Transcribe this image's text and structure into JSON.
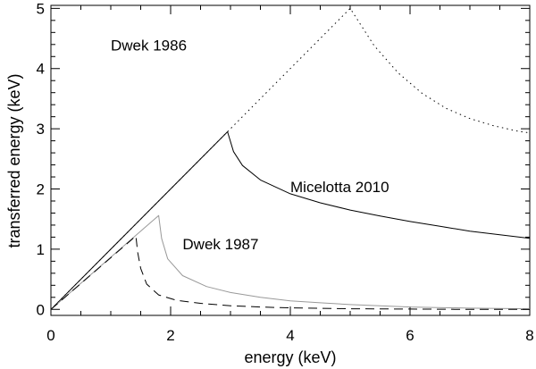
{
  "chart_data": {
    "type": "line",
    "title": "",
    "xlabel": "energy (keV)",
    "ylabel": "transferred energy (keV)",
    "xlim": [
      0,
      8
    ],
    "ylim": [
      -0.1,
      5.05
    ],
    "xticks": [
      0,
      2,
      4,
      6,
      8
    ],
    "xtick_labels": [
      "0",
      "2",
      "4",
      "6",
      "8"
    ],
    "yticks": [
      0,
      1,
      2,
      3,
      4,
      5
    ],
    "ytick_labels": [
      "0",
      "1",
      "2",
      "3",
      "4",
      "5"
    ],
    "grid": false,
    "legend": "none",
    "annotations": [
      {
        "text": "Dwek 1986",
        "x": 1.0,
        "y": 4.3
      },
      {
        "text": "Micelotta 2010",
        "x": 4.0,
        "y": 1.95
      },
      {
        "text": "Dwek 1987",
        "x": 2.2,
        "y": 1.0
      }
    ],
    "series": [
      {
        "style": "dotted",
        "color": "#000000",
        "x": [
          0,
          1,
          2,
          3,
          4,
          5,
          5.4,
          5.8,
          6.2,
          6.6,
          7,
          7.4,
          7.8,
          8
        ],
        "y": [
          0,
          1,
          2,
          3,
          4,
          5,
          4.38,
          3.93,
          3.59,
          3.34,
          3.17,
          3.05,
          2.96,
          2.93
        ]
      },
      {
        "style": "solid",
        "color": "#000000",
        "x": [
          0,
          1,
          2,
          2.95,
          3.05,
          3.2,
          3.5,
          4,
          4.5,
          5,
          5.5,
          6,
          6.5,
          7,
          7.5,
          8
        ],
        "y": [
          0,
          1,
          2,
          2.95,
          2.62,
          2.39,
          2.15,
          1.92,
          1.77,
          1.65,
          1.55,
          1.46,
          1.38,
          1.3,
          1.24,
          1.18
        ]
      },
      {
        "style": "solid",
        "color": "#999999",
        "x": [
          0,
          0.9,
          1.8,
          1.85,
          1.95,
          2.2,
          2.6,
          3,
          3.5,
          4,
          4.5,
          5,
          5.5,
          6,
          7,
          8
        ],
        "y": [
          0,
          0.78,
          1.56,
          1.18,
          0.84,
          0.56,
          0.38,
          0.28,
          0.2,
          0.14,
          0.11,
          0.08,
          0.06,
          0.04,
          0.02,
          0.01
        ]
      },
      {
        "style": "dashed",
        "color": "#000000",
        "x": [
          0,
          0.7,
          1.42,
          1.45,
          1.5,
          1.6,
          1.8,
          2.1,
          2.5,
          3,
          3.5,
          4,
          5,
          6,
          7,
          8
        ],
        "y": [
          0,
          0.6,
          1.22,
          0.95,
          0.68,
          0.42,
          0.24,
          0.15,
          0.1,
          0.06,
          0.04,
          0.025,
          0.01,
          0.005,
          0,
          0
        ]
      }
    ]
  }
}
